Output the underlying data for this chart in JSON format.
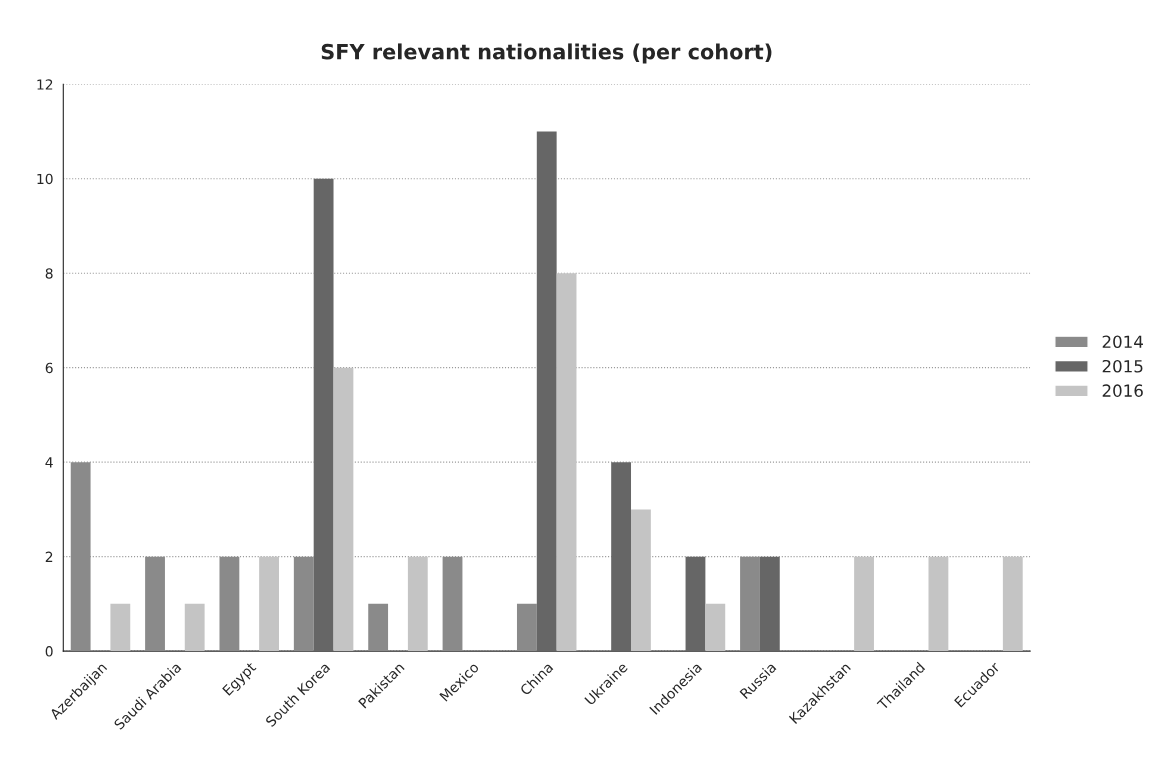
{
  "chart_data": {
    "type": "bar",
    "title": "SFY relevant nationalities (per cohort)",
    "categories": [
      "Azerbaijan",
      "Saudi Arabia",
      "Egypt",
      "South Korea",
      "Pakistan",
      "Mexico",
      "China",
      "Ukraine",
      "Indonesia",
      "Russia",
      "Kazakhstan",
      "Thailand",
      "Ecuador"
    ],
    "series": [
      {
        "name": "2014",
        "color": "#8a8a8a",
        "values": [
          4,
          2,
          2,
          2,
          1,
          2,
          1,
          null,
          null,
          2,
          null,
          null,
          null
        ]
      },
      {
        "name": "2015",
        "color": "#666666",
        "values": [
          null,
          null,
          null,
          10,
          null,
          null,
          11,
          4,
          2,
          2,
          null,
          null,
          null
        ]
      },
      {
        "name": "2016",
        "color": "#c4c4c4",
        "values": [
          1,
          1,
          2,
          6,
          2,
          null,
          8,
          3,
          1,
          null,
          2,
          2,
          2
        ]
      }
    ],
    "ylim": [
      0,
      12
    ],
    "yticks": [
      0,
      2,
      4,
      6,
      8,
      10,
      12
    ],
    "grid": "y",
    "legend": "right"
  }
}
